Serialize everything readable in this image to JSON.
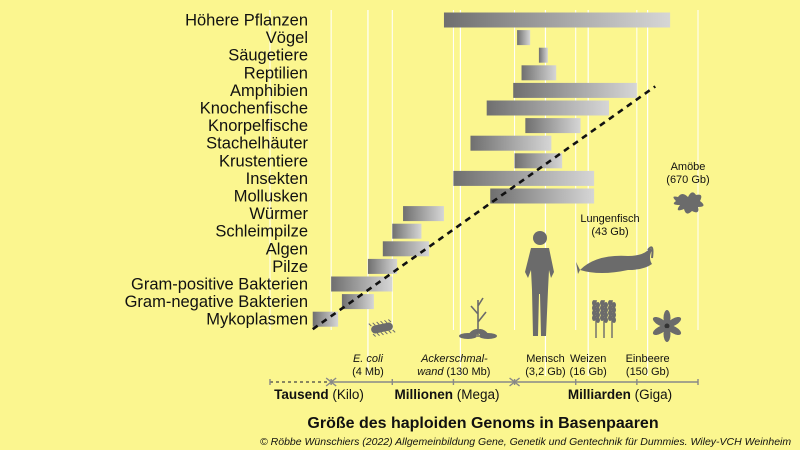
{
  "chart_data": {
    "type": "bar",
    "title": "",
    "xlabel": "Größe des haploiden Genoms in Basenpaaren",
    "ylabel": "",
    "x_scale": "log",
    "xlim": [
      100000,
      1000000000000
    ],
    "grid": true,
    "categories": [
      "Höhere Pflanzen",
      "Vögel",
      "Säugetiere",
      "Reptilien",
      "Amphibien",
      "Knochenfische",
      "Knorpelfische",
      "Stachelhäuter",
      "Krustentiere",
      "Insekten",
      "Mollusken",
      "Würmer",
      "Schleimpilze",
      "Algen",
      "Pilze",
      "Gram-positive Bakterien",
      "Gram-negative Bakterien",
      "Mykoplasmen"
    ],
    "ranges": [
      [
        70000000,
        350000000000
      ],
      [
        1100000000,
        1800000000
      ],
      [
        2500000000,
        3500000000
      ],
      [
        1300000000,
        4800000000
      ],
      [
        950000000,
        100000000000
      ],
      [
        350000000,
        35000000000
      ],
      [
        1500000000,
        12000000000
      ],
      [
        190000000,
        4000000000
      ],
      [
        1000000000,
        6000000000
      ],
      [
        100000000,
        20000000000
      ],
      [
        400000000,
        20000000000
      ],
      [
        15000000,
        70000000
      ],
      [
        10000000,
        30000000
      ],
      [
        7000000,
        40000000
      ],
      [
        4000000,
        12000000
      ],
      [
        1000000,
        10000000
      ],
      [
        1500000,
        5000000
      ],
      [
        500000,
        1300000
      ]
    ],
    "trendline": {
      "style": "dashed",
      "from": [
        500000,
        "Mykoplasmen"
      ],
      "to": [
        200000000000,
        "Amphibien"
      ]
    },
    "reference_lines": [
      {
        "value": 4000000,
        "name": "E. coli",
        "size": "(4 Mb)",
        "icon": "bacterium-icon"
      },
      {
        "value": 130000000,
        "name": "Ackerschmal-",
        "name2": "wand",
        "size": "(130 Mb)",
        "icon": "plant-icon"
      },
      {
        "value": 3200000000,
        "name": "Mensch",
        "size": "(3,2 Gb)",
        "icon": "human-icon"
      },
      {
        "value": 16000000000,
        "name": "Weizen",
        "size": "(16 Gb)",
        "icon": "wheat-icon"
      },
      {
        "value": 150000000000,
        "name": "Einbeere",
        "size": "(150 Gb)",
        "icon": "flower-icon"
      }
    ],
    "extra_annotations": [
      {
        "value": 43000000000,
        "name": "Lungenfisch",
        "size": "(43 Gb)",
        "icon": "lungfish-icon"
      },
      {
        "value": 670000000000,
        "name": "Amöbe",
        "size": "(670 Gb)",
        "icon": "amoeba-icon"
      }
    ],
    "scale_segments": [
      {
        "bold": "Tausend",
        "rest": " (Kilo)",
        "from": 100000,
        "to": 1000000
      },
      {
        "bold": "Millionen",
        "rest": " (Mega)",
        "from": 1000000,
        "to": 1000000000
      },
      {
        "bold": "Milliarden",
        "rest": " (Giga)",
        "from": 1000000000,
        "to": 1000000000000
      }
    ]
  },
  "credit": "© Röbbe Wünschiers (2022) Allgemeinbildung Gene, Genetik und Gentechnik für Dummies. Wiley-VCH Weinheim",
  "colors": {
    "background": "#fbf68f",
    "bar_dark": "#6f6f6f",
    "bar_light": "#d4d4d4",
    "icon": "#6b6b6b",
    "grid": "#ffffff"
  }
}
